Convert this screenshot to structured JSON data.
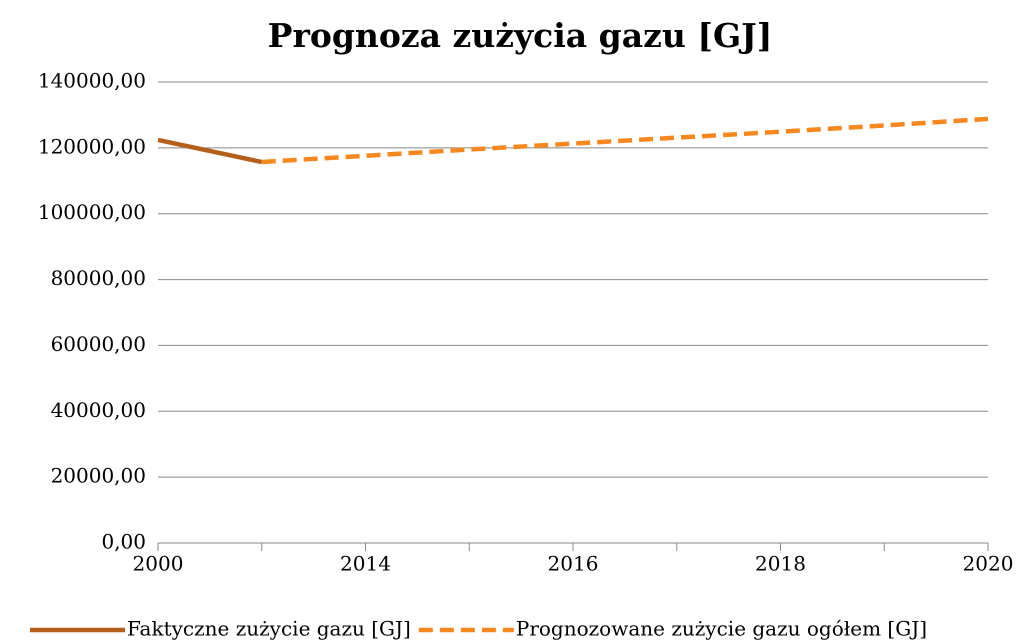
{
  "chart_data": {
    "type": "line",
    "title": "Prognoza zużycia gazu [GJ]",
    "categories": [
      "2000",
      null,
      "2014",
      null,
      "2016",
      null,
      "2018",
      null,
      "2020"
    ],
    "series": [
      {
        "name": "Faktyczne zużycie gazu [GJ]",
        "color": "#b5601a",
        "dash": false,
        "values": [
          122400,
          115700,
          null,
          null,
          null,
          null,
          null,
          null,
          null
        ]
      },
      {
        "name": "Prognozowane zużycie gazu ogółem [GJ]",
        "color": "#f7881f",
        "dash": true,
        "values": [
          null,
          115700,
          117600,
          119500,
          121300,
          123100,
          124900,
          126800,
          128800
        ]
      }
    ],
    "ylim": [
      0,
      140000
    ],
    "yticks": [
      {
        "value": 0,
        "label": "0,00"
      },
      {
        "value": 20000,
        "label": "20000,00"
      },
      {
        "value": 40000,
        "label": "40000,00"
      },
      {
        "value": 60000,
        "label": "60000,00"
      },
      {
        "value": 80000,
        "label": "80000,00"
      },
      {
        "value": 100000,
        "label": "100000,00"
      },
      {
        "value": 120000,
        "label": "120000,00"
      },
      {
        "value": 140000,
        "label": "140000,00"
      }
    ],
    "grid": true,
    "legend": "bottom"
  }
}
